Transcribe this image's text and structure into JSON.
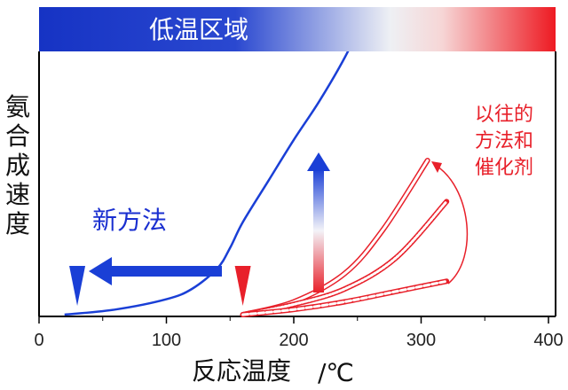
{
  "chart_data": {
    "type": "line",
    "xlabel": "反応温度",
    "xunit": "/℃",
    "ylabel": "氨合成速度",
    "xlim": [
      0,
      400
    ],
    "xticks": [
      0,
      100,
      200,
      300,
      400
    ],
    "banner": "低温区域",
    "new_method": {
      "label": "新方法",
      "color": "#1a3fd6",
      "x": [
        20,
        60,
        100,
        120,
        140,
        150,
        160,
        180,
        200,
        220,
        240,
        260
      ],
      "y": [
        0.0,
        0.02,
        0.06,
        0.1,
        0.18,
        0.26,
        0.36,
        0.52,
        0.68,
        0.83,
        1.0,
        1.2
      ],
      "start_marker_x": 30
    },
    "conventional": {
      "label_lines": [
        "以往的",
        "方法和",
        "催化剂"
      ],
      "color": "#e8202a",
      "start_marker_x": 160,
      "curves": [
        {
          "style": "solid",
          "x": [
            160,
            200,
            240,
            270,
            305
          ],
          "y": [
            0.0,
            0.05,
            0.16,
            0.33,
            0.6
          ]
        },
        {
          "style": "dotted",
          "x": [
            160,
            200,
            240,
            280,
            320
          ],
          "y": [
            0.0,
            0.04,
            0.1,
            0.22,
            0.44
          ]
        },
        {
          "style": "dashed",
          "x": [
            160,
            200,
            240,
            280,
            320
          ],
          "y": [
            0.0,
            0.02,
            0.05,
            0.09,
            0.13
          ]
        }
      ]
    },
    "colors": {
      "cold": "#1a3fd6",
      "hot": "#e8202a",
      "axis": "#000000"
    }
  }
}
